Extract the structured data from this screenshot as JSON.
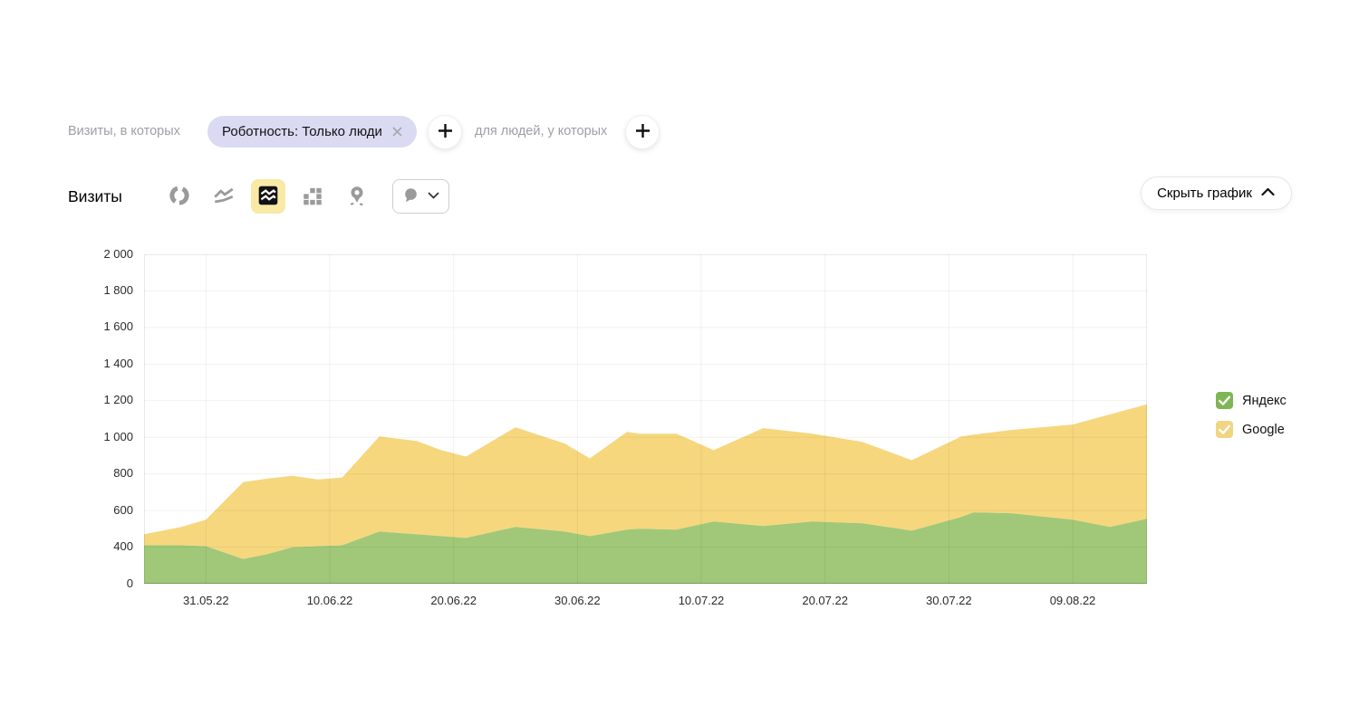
{
  "filter_bar": {
    "prefix_label": "Визиты, в которых",
    "chip_label": "Роботность: Только люди",
    "middle_label": "для людей, у которых"
  },
  "toolbar": {
    "metric_title": "Визиты",
    "chart_type_icons": [
      "pie-chart",
      "line-chart",
      "stacked-area-chart",
      "bar-chart",
      "map"
    ],
    "selected_chart_type": "stacked-area-chart",
    "selected_icon_bg": "#F8E9A4",
    "hide_chart_label": "Скрыть график"
  },
  "legend": {
    "items": [
      {
        "label": "Яндекс",
        "checkbox_color": "#7EB654",
        "checked": true
      },
      {
        "label": "Google",
        "checkbox_color": "#F2D583",
        "checked": true
      }
    ]
  },
  "chart_data": {
    "type": "area",
    "stacked": true,
    "title": "Визиты",
    "xlabel": "",
    "ylabel": "",
    "ylim": [
      0,
      2000
    ],
    "grid": true,
    "legend_position": "right",
    "y_tick_labels": [
      "2 000",
      "1 800",
      "1 600",
      "1 400",
      "1 200",
      "1 000",
      "800",
      "600",
      "400",
      "0"
    ],
    "x_range_days": [
      0,
      81
    ],
    "x_tick_labels": [
      {
        "day": 5,
        "label": "31.05.22"
      },
      {
        "day": 15,
        "label": "10.06.22"
      },
      {
        "day": 25,
        "label": "20.06.22"
      },
      {
        "day": 35,
        "label": "30.06.22"
      },
      {
        "day": 45,
        "label": "10.07.22"
      },
      {
        "day": 55,
        "label": "20.07.22"
      },
      {
        "day": 65,
        "label": "30.07.22"
      },
      {
        "day": 75,
        "label": "09.08.22"
      }
    ],
    "days": [
      0,
      3,
      5,
      8,
      10,
      12,
      14,
      16,
      19,
      22,
      24,
      26,
      30,
      34,
      36,
      39,
      40,
      43,
      46,
      50,
      54,
      58,
      61,
      62,
      66,
      67,
      70,
      75,
      78,
      81
    ],
    "dates": [
      "26.05.22",
      "29.05.22",
      "31.05.22",
      "03.06.22",
      "05.06.22",
      "07.06.22",
      "09.06.22",
      "11.06.22",
      "14.06.22",
      "17.06.22",
      "19.06.22",
      "21.06.22",
      "25.06.22",
      "29.06.22",
      "01.07.22",
      "04.07.22",
      "05.07.22",
      "08.07.22",
      "11.07.22",
      "15.07.22",
      "19.07.22",
      "23.07.22",
      "26.07.22",
      "27.07.22",
      "31.07.22",
      "01.08.22",
      "04.08.22",
      "09.08.22",
      "12.08.22",
      "15.08.22"
    ],
    "series": [
      {
        "name": "Яндекс",
        "color": "#A0C878",
        "values": [
          410,
          410,
          405,
          270,
          325,
          400,
          405,
          410,
          485,
          470,
          460,
          450,
          510,
          485,
          460,
          495,
          500,
          495,
          540,
          515,
          540,
          530,
          500,
          490,
          565,
          590,
          585,
          550,
          510,
          555
        ]
      },
      {
        "name": "Google",
        "color": "#F6D77E",
        "values": [
          60,
          100,
          145,
          485,
          450,
          390,
          365,
          370,
          520,
          510,
          470,
          445,
          545,
          480,
          425,
          535,
          520,
          525,
          390,
          535,
          480,
          445,
          400,
          385,
          440,
          425,
          455,
          520,
          615,
          625
        ]
      }
    ],
    "gridline_color": "rgba(0,0,0,0.055)",
    "border_color": "rgba(0,0,0,0.09)",
    "axis_color": "rgba(0,0,0,0.16)"
  }
}
